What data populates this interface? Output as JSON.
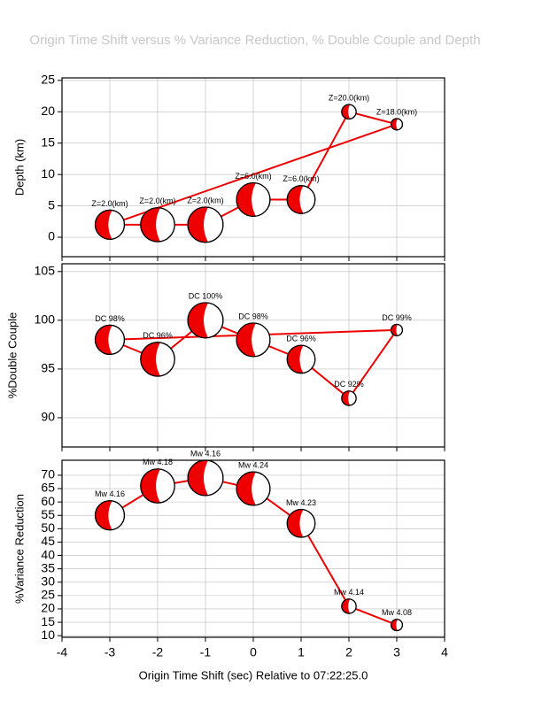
{
  "chart_data": [
    {
      "type": "line",
      "title": "Origin Time Shift versus % Variance Reduction, % Double Couple and Depth",
      "ylabel": "Depth (km)",
      "x": [
        -3,
        -2,
        -1,
        0,
        1,
        2,
        3
      ],
      "values": [
        2,
        2,
        2,
        6,
        6,
        20,
        18
      ],
      "labels": [
        "Z=2.0(km)",
        "Z=2.0(km)",
        "Z=2.0(km)",
        "Z=6.0(km)",
        "Z=6.0(km)",
        "Z=20.0(km)",
        "Z=18.0(km)"
      ],
      "closed": true,
      "color": "#ee0000",
      "xlim": [
        -4,
        4
      ],
      "xticks": [
        -4,
        -3,
        -2,
        -1,
        0,
        1,
        2,
        3,
        4
      ],
      "ylim": [
        -3.1,
        25.4
      ],
      "yticks": [
        0,
        5,
        10,
        15,
        20,
        25
      ],
      "grid": true
    },
    {
      "type": "line",
      "ylabel": "%Double Couple",
      "x": [
        -3,
        -2,
        -1,
        0,
        1,
        2,
        3
      ],
      "values": [
        98,
        96,
        100,
        98,
        96,
        92,
        99
      ],
      "labels": [
        "DC 98%",
        "DC 96%",
        "DC 100%",
        "DC 98%",
        "DC 96%",
        "DC 92%",
        "DC 99%"
      ],
      "closed": true,
      "color": "#ee0000",
      "xlim": [
        -4,
        4
      ],
      "xticks": [
        -4,
        -3,
        -2,
        -1,
        0,
        1,
        2,
        3,
        4
      ],
      "ylim": [
        87,
        105.8
      ],
      "yticks": [
        90,
        95,
        100,
        105
      ],
      "grid": true
    },
    {
      "type": "line",
      "ylabel": "%Variance Reduction",
      "xlabel": "Origin Time Shift (sec) Relative to 07:22:25.0",
      "x": [
        -3,
        -2,
        -1,
        0,
        1,
        2,
        3
      ],
      "values": [
        55,
        66,
        69,
        65,
        52,
        21,
        14
      ],
      "labels": [
        "Mw 4.16",
        "Mw 4.18",
        "Mw 4.16",
        "Mw 4.24",
        "Mw 4.23",
        "Mw 4.14",
        "Mw 4.08"
      ],
      "closed": false,
      "color": "#ee0000",
      "xlim": [
        -4,
        4
      ],
      "xticks": [
        -4,
        -3,
        -2,
        -1,
        0,
        1,
        2,
        3,
        4
      ],
      "ylim": [
        9.4,
        75.6
      ],
      "yticks": [
        10,
        15,
        20,
        25,
        30,
        35,
        40,
        45,
        50,
        55,
        60,
        65,
        70
      ],
      "grid": true
    }
  ]
}
